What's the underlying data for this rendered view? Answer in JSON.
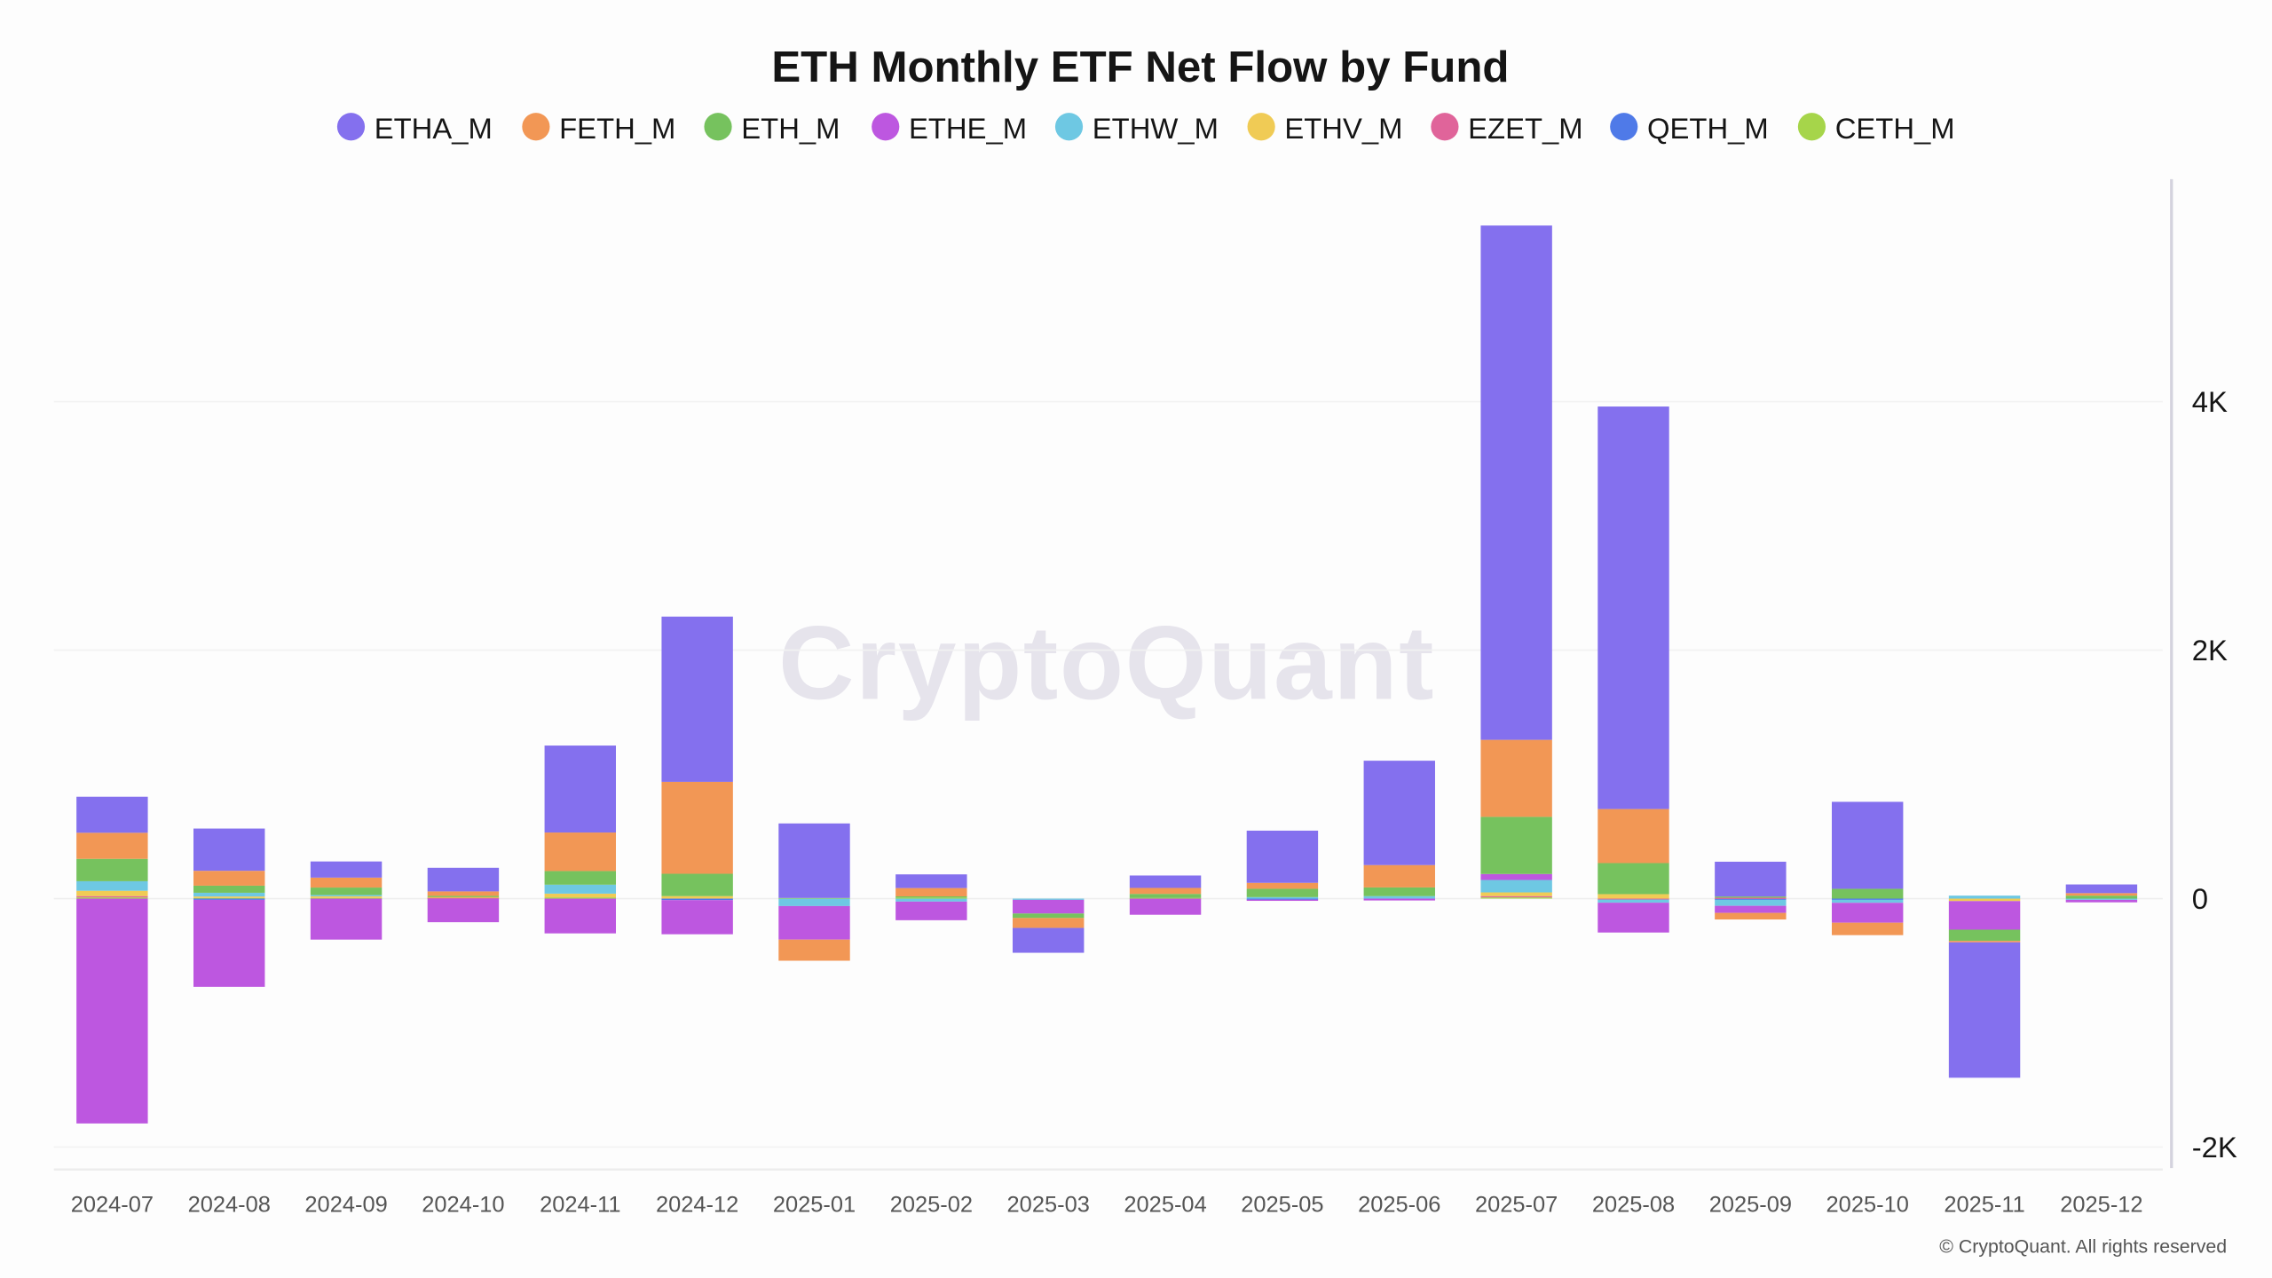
{
  "chart_data": {
    "type": "bar",
    "stacked": true,
    "title": "ETH Monthly ETF Net Flow by Fund",
    "xlabel": "",
    "ylabel": "",
    "categories": [
      "2024-07",
      "2024-08",
      "2024-09",
      "2024-10",
      "2024-11",
      "2024-12",
      "2025-01",
      "2025-02",
      "2025-03",
      "2025-04",
      "2025-05",
      "2025-06",
      "2025-07",
      "2025-08",
      "2025-09",
      "2025-10",
      "2025-11",
      "2025-12"
    ],
    "ylim": [
      -2170,
      5790
    ],
    "yticks": [
      -2000,
      0,
      2000,
      4000
    ],
    "ytick_labels": [
      "-2K",
      "0",
      "2K",
      "4K"
    ],
    "y_axis_side": "right",
    "grid": true,
    "legend_position": "top",
    "series": [
      {
        "name": "ETHA_M",
        "color": "#8470ee",
        "values": [
          290,
          340,
          130,
          190,
          700,
          1330,
          600,
          110,
          -200,
          100,
          420,
          840,
          4140,
          3240,
          280,
          700,
          -1090,
          70
        ]
      },
      {
        "name": "FETH_M",
        "color": "#f29755",
        "values": [
          210,
          120,
          80,
          36,
          310,
          740,
          -170,
          67,
          -80,
          48,
          48,
          180,
          620,
          435,
          -53,
          -100,
          -12,
          20
        ]
      },
      {
        "name": "ETH_M",
        "color": "#76c25e",
        "values": [
          180,
          57,
          60,
          7,
          110,
          180,
          0,
          10,
          -36,
          33,
          67,
          70,
          460,
          250,
          10,
          79,
          -90,
          24
        ]
      },
      {
        "name": "ETHE_M",
        "color": "#bd57e0",
        "values": [
          -1810,
          -700,
          -330,
          -190,
          -280,
          -275,
          -270,
          -150,
          -110,
          -130,
          -10,
          -15,
          48,
          -240,
          -57,
          -160,
          -230,
          -20
        ]
      },
      {
        "name": "ETHW_M",
        "color": "#6ec8e3",
        "values": [
          77,
          30,
          10,
          0,
          72,
          0,
          -60,
          -24,
          -10,
          0,
          12,
          20,
          100,
          -26,
          -48,
          -24,
          24,
          -10
        ]
      },
      {
        "name": "ETHV_M",
        "color": "#f0cb55",
        "values": [
          43,
          12,
          14,
          5,
          30,
          20,
          0,
          0,
          0,
          0,
          0,
          0,
          30,
          36,
          0,
          0,
          -20,
          0
        ]
      },
      {
        "name": "EZET_M",
        "color": "#e0649a",
        "values": [
          10,
          0,
          0,
          5,
          0,
          0,
          0,
          0,
          0,
          0,
          0,
          0,
          10,
          -7,
          7,
          0,
          0,
          0
        ]
      },
      {
        "name": "QETH_M",
        "color": "#4f7ae8",
        "values": [
          0,
          -10,
          0,
          0,
          0,
          -12,
          0,
          0,
          0,
          0,
          -8,
          0,
          0,
          0,
          -10,
          -10,
          0,
          0
        ]
      },
      {
        "name": "CETH_M",
        "color": "#a6d54a",
        "values": [
          10,
          5,
          5,
          5,
          10,
          0,
          5,
          8,
          0,
          5,
          0,
          0,
          10,
          0,
          0,
          0,
          0,
          0
        ]
      }
    ]
  },
  "watermark": "CryptoQuant",
  "copyright": "© CryptoQuant. All rights reserved"
}
